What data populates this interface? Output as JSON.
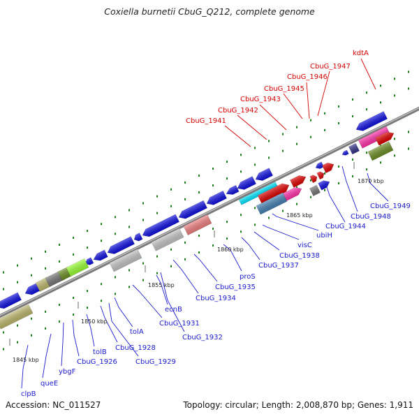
{
  "header": {
    "title": "Coxiella burnetii CbuG_Q212, complete genome"
  },
  "footer": {
    "accession": "Accession: NC_011527",
    "summary": "Topology: circular; Length: 2,008,870 bp; Genes: 1,911"
  },
  "colors": {
    "backbone": "#8c8c8c",
    "tick": "#1a7a1a",
    "label_forward": "#d40000",
    "label_reverse": "#1a1acc",
    "blue": "#1010e0",
    "red": "#e00000",
    "magenta": "#ff33aa",
    "steel": "#4682b4",
    "olive": "#6b8e23",
    "khaki": "#bdb76b",
    "lime": "#99ff33",
    "salmon": "#f08080",
    "cyan": "#00e5ff",
    "silver": "#c4c4c4",
    "dimgray": "#777777",
    "navy": "#33338a"
  },
  "kbp_labels": [
    "1845 kbp",
    "1850 kbp",
    "1855 kbp",
    "1860 kbp",
    "1865 kbp",
    "1870 kbp"
  ],
  "gene_labels_forward": [
    "CbuG_1941",
    "CbuG_1942",
    "CbuG_1943",
    "CbuG_1945",
    "CbuG_1946",
    "CbuG_1947",
    "kdtA"
  ],
  "gene_labels_reverse": [
    "clpB",
    "queE",
    "ybgF",
    "CbuG_1926",
    "tolB",
    "CbuG_1928",
    "CbuG_1929",
    "tolA",
    "CbuG_1931",
    "CbuG_1932",
    "ecnB",
    "CbuG_1934",
    "CbuG_1935",
    "proS",
    "CbuG_1937",
    "CbuG_1938",
    "visC",
    "ubiH",
    "CbuG_1944",
    "CbuG_1948",
    "CbuG_1949"
  ]
}
